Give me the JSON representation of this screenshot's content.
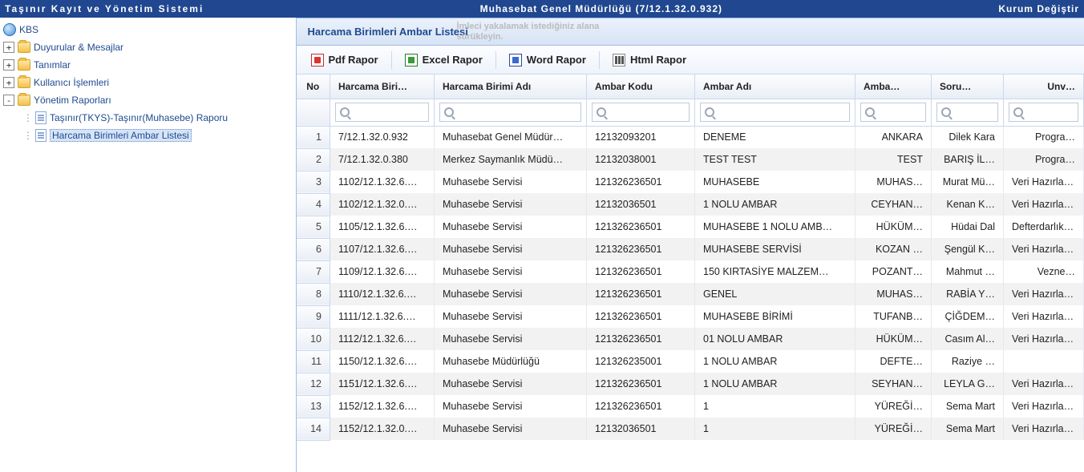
{
  "header": {
    "left": "Taşınır Kayıt ve Yönetim Sistemi",
    "center": "Muhasebat Genel Müdürlüğü (7/12.1.32.0.932)",
    "right": "Kurum Değiştir"
  },
  "sidebar": {
    "root": "KBS",
    "nodes": {
      "duyurular": "Duyurular & Mesajlar",
      "tanimlar": "Tanımlar",
      "kullanici": "Kullanıcı İşlemleri",
      "yonetim": "Yönetim Raporları",
      "tkys": "Taşınır(TKYS)-Taşınır(Muhasebe) Raporu",
      "ambar": "Harcama Birimleri Ambar Listesi"
    }
  },
  "panel": {
    "title": "Harcama Birimleri Ambar Listesi"
  },
  "ghost": {
    "l1": "İmleci yakalamak istediğiniz alana",
    "l2": "sürükleyin."
  },
  "toolbar": {
    "pdf": "Pdf Rapor",
    "excel": "Excel Rapor",
    "word": "Word Rapor",
    "html": "Html Rapor"
  },
  "columns": {
    "no": "No",
    "hb": "Harcama Biri…",
    "hba": "Harcama Birimi Adı",
    "ak": "Ambar Kodu",
    "aa": "Ambar Adı",
    "ami": "Amba…",
    "sor": "Soru…",
    "unv": "Unv…"
  },
  "rows": [
    {
      "no": "1",
      "hb": "7/12.1.32.0.932",
      "hba": "Muhasebat Genel Müdür…",
      "ak": "12132093201",
      "aa": "DENEME",
      "ami": "ANKARA",
      "sor": "Dilek Kara",
      "unv": "Progra…"
    },
    {
      "no": "2",
      "hb": "7/12.1.32.0.380",
      "hba": "Merkez Saymanlık Müdü…",
      "ak": "12132038001",
      "aa": "TEST TEST",
      "ami": "TEST",
      "sor": "BARIŞ İL…",
      "unv": "Progra…"
    },
    {
      "no": "3",
      "hb": "1102/12.1.32.6.…",
      "hba": "Muhasebe Servisi",
      "ak": "121326236501",
      "aa": "MUHASEBE",
      "ami": "MUHAS…",
      "sor": "Murat Mü…",
      "unv": "Veri Hazırlama…"
    },
    {
      "no": "4",
      "hb": "1102/12.1.32.0.…",
      "hba": "Muhasebe Servisi",
      "ak": "12132036501",
      "aa": "1 NOLU AMBAR",
      "ami": "CEYHAN…",
      "sor": "Kenan K…",
      "unv": "Veri Hazırlama…"
    },
    {
      "no": "5",
      "hb": "1105/12.1.32.6.…",
      "hba": "Muhasebe Servisi",
      "ak": "121326236501",
      "aa": "MUHASEBE 1 NOLU AMB…",
      "ami": "HÜKÜM…",
      "sor": "Hüdai Dal",
      "unv": "Defterdarlık U…"
    },
    {
      "no": "6",
      "hb": "1107/12.1.32.6.…",
      "hba": "Muhasebe Servisi",
      "ak": "121326236501",
      "aa": "MUHASEBE SERVİSİ",
      "ami": "KOZAN …",
      "sor": "Şengül K…",
      "unv": "Veri Hazırlama…"
    },
    {
      "no": "7",
      "hb": "1109/12.1.32.6.…",
      "hba": "Muhasebe Servisi",
      "ak": "121326236501",
      "aa": "150 KIRTASİYE MALZEM…",
      "ami": "POZANT…",
      "sor": "Mahmut …",
      "unv": "Vezne…"
    },
    {
      "no": "8",
      "hb": "1110/12.1.32.6.…",
      "hba": "Muhasebe Servisi",
      "ak": "121326236501",
      "aa": "GENEL",
      "ami": "MUHAS…",
      "sor": "RABİA Y…",
      "unv": "Veri Hazırlama…"
    },
    {
      "no": "9",
      "hb": "1111/12.1.32.6.…",
      "hba": "Muhasebe Servisi",
      "ak": "121326236501",
      "aa": "MUHASEBE BİRİMİ",
      "ami": "TUFANB…",
      "sor": "ÇİĞDEM…",
      "unv": "Veri Hazırlama…"
    },
    {
      "no": "10",
      "hb": "1112/12.1.32.6.…",
      "hba": "Muhasebe Servisi",
      "ak": "121326236501",
      "aa": "01 NOLU AMBAR",
      "ami": "HÜKÜM…",
      "sor": "Casım Al…",
      "unv": "Veri Hazırlama…"
    },
    {
      "no": "11",
      "hb": "1150/12.1.32.6.…",
      "hba": "Muhasebe Müdürlüğü",
      "ak": "121326235001",
      "aa": "1 NOLU AMBAR",
      "ami": "DEFTE…",
      "sor": "Raziye …",
      "unv": ""
    },
    {
      "no": "12",
      "hb": "1151/12.1.32.6.…",
      "hba": "Muhasebe Servisi",
      "ak": "121326236501",
      "aa": "1 NOLU AMBAR",
      "ami": "SEYHAN…",
      "sor": "LEYLA G…",
      "unv": "Veri Hazırlama…"
    },
    {
      "no": "13",
      "hb": "1152/12.1.32.6.…",
      "hba": "Muhasebe Servisi",
      "ak": "121326236501",
      "aa": "1",
      "ami": "YÜREĞİ…",
      "sor": "Sema Mart",
      "unv": "Veri Hazırlama…"
    },
    {
      "no": "14",
      "hb": "1152/12.1.32.0.…",
      "hba": "Muhasebe Servisi",
      "ak": "12132036501",
      "aa": "1",
      "ami": "YÜREĞİ…",
      "sor": "Sema Mart",
      "unv": "Veri Hazırlama…"
    }
  ],
  "row_colors": {
    "even_bg": "#f2f2f2",
    "odd_bg": "#ffffff",
    "header_bg": "#20478f",
    "link_color": "#1f4a8f"
  }
}
